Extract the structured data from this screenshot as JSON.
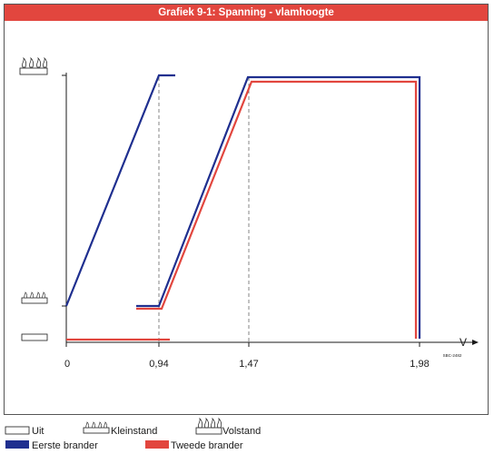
{
  "chart_data": {
    "type": "line",
    "title": "Grafiek 9-1: Spanning - vlamhoogte",
    "xlabel": "V",
    "ylabel": "",
    "xlim": [
      0,
      1.98
    ],
    "x_ticks": [
      "0",
      "0,94",
      "1,47",
      "1,98"
    ],
    "y_levels": [
      "Uit",
      "Kleinstand",
      "Volstand"
    ],
    "grid": false,
    "reference_lines_x": [
      0.94,
      1.47
    ],
    "code": "SBC-2482",
    "series": [
      {
        "name": "Eerste brander",
        "color": "#1f2f8f",
        "segments": [
          [
            [
              0,
              "Kleinstand"
            ],
            [
              0.94,
              "Volstand"
            ],
            [
              1.0,
              "Volstand"
            ]
          ],
          [
            [
              0.8,
              "Kleinstand"
            ],
            [
              0.94,
              "Kleinstand"
            ],
            [
              1.47,
              "Volstand"
            ],
            [
              1.98,
              "Volstand"
            ],
            [
              1.98,
              "Uit"
            ]
          ]
        ]
      },
      {
        "name": "Tweede brander",
        "color": "#e2463e",
        "segments": [
          [
            [
              0,
              "Uit"
            ],
            [
              1.2,
              "Uit"
            ]
          ],
          [
            [
              0.8,
              "Kleinstand"
            ],
            [
              0.94,
              "Kleinstand"
            ],
            [
              1.47,
              "Volstand"
            ],
            [
              1.98,
              "Volstand"
            ],
            [
              1.98,
              "Uit"
            ]
          ]
        ]
      }
    ],
    "legend": {
      "placement": "bottom",
      "items": [
        "Uit",
        "Kleinstand",
        "Volstand",
        "Eerste brander",
        "Tweede brander"
      ]
    }
  }
}
